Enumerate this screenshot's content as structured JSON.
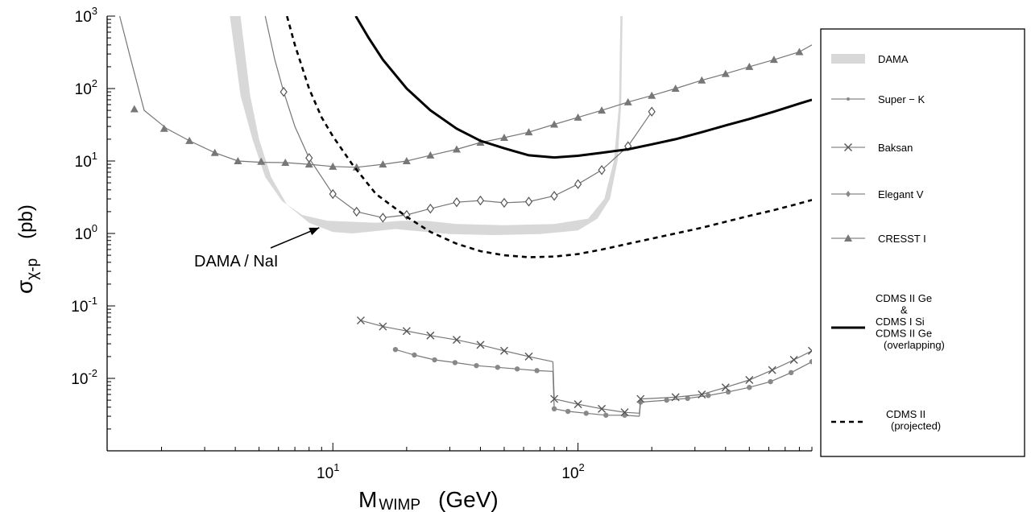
{
  "chart_data": {
    "type": "line",
    "title": "",
    "xlabel_main": "M",
    "xlabel_sub": "WIMP",
    "xlabel_unit": "(GeV)",
    "ylabel_main": "σ",
    "ylabel_sub": "χ-p",
    "ylabel_unit": "(pb)",
    "x_scale": "log",
    "y_scale": "log",
    "xlim": [
      1.2,
      900
    ],
    "ylim": [
      0.001,
      1000
    ],
    "x_ticks": [
      {
        "value": 10,
        "base": "10",
        "exp": "1"
      },
      {
        "value": 100,
        "base": "10",
        "exp": "2"
      }
    ],
    "y_ticks": [
      {
        "value": 1000,
        "base": "10",
        "exp": "3"
      },
      {
        "value": 100,
        "base": "10",
        "exp": "2"
      },
      {
        "value": 10,
        "base": "10",
        "exp": "1"
      },
      {
        "value": 1,
        "base": "10",
        "exp": "0"
      },
      {
        "value": 0.1,
        "base": "10",
        "exp": "-1"
      },
      {
        "value": 0.01,
        "base": "10",
        "exp": "-2"
      }
    ],
    "grid": false,
    "legend_position": "right",
    "series": [
      {
        "name": "DAMA",
        "style": "band",
        "color": "#d8d8d8",
        "lower": [
          [
            4.2,
            1000
          ],
          [
            4.6,
            80
          ],
          [
            5,
            20
          ],
          [
            5.6,
            6
          ],
          [
            6.5,
            2.5
          ],
          [
            8,
            1.4
          ],
          [
            10,
            1.05
          ],
          [
            12,
            1.0
          ],
          [
            15,
            1.08
          ],
          [
            18,
            1.15
          ],
          [
            22,
            1.08
          ],
          [
            30,
            0.98
          ],
          [
            45,
            0.95
          ],
          [
            70,
            0.98
          ],
          [
            100,
            1.1
          ],
          [
            120,
            1.6
          ],
          [
            135,
            3
          ],
          [
            145,
            10
          ],
          [
            150,
            60
          ],
          [
            152,
            1000
          ]
        ],
        "upper": [
          [
            3.8,
            1000
          ],
          [
            4.2,
            80
          ],
          [
            4.7,
            20
          ],
          [
            5.3,
            6
          ],
          [
            6.2,
            2.8
          ],
          [
            7.5,
            1.8
          ],
          [
            9.5,
            1.5
          ],
          [
            12,
            1.45
          ],
          [
            15,
            1.4
          ],
          [
            19,
            1.5
          ],
          [
            24,
            1.5
          ],
          [
            32,
            1.35
          ],
          [
            50,
            1.3
          ],
          [
            80,
            1.35
          ],
          [
            110,
            1.6
          ],
          [
            128,
            3
          ],
          [
            140,
            10
          ],
          [
            147,
            60
          ],
          [
            149,
            1000
          ]
        ]
      },
      {
        "name": "Super-K",
        "style": "marker-line",
        "color": "#777777",
        "marker": "dot",
        "segments": [
          [
            [
              18,
              0.025
            ],
            [
              21.5,
              0.021
            ],
            [
              26,
              0.018
            ],
            [
              31.5,
              0.0165
            ],
            [
              38.5,
              0.015
            ],
            [
              47,
              0.0142
            ],
            [
              56.5,
              0.0135
            ],
            [
              68,
              0.0128
            ],
            [
              79,
              0.0125
            ]
          ],
          [
            [
              80,
              0.0038
            ],
            [
              91,
              0.0035
            ],
            [
              108,
              0.0033
            ],
            [
              130,
              0.0031
            ],
            [
              155,
              0.0031
            ],
            [
              178,
              0.003
            ]
          ],
          [
            [
              180,
              0.0047
            ],
            [
              230,
              0.005
            ],
            [
              280,
              0.0053
            ],
            [
              340,
              0.0058
            ],
            [
              410,
              0.0065
            ],
            [
              500,
              0.0075
            ],
            [
              610,
              0.009
            ],
            [
              740,
              0.012
            ],
            [
              900,
              0.017
            ]
          ]
        ]
      },
      {
        "name": "Baksan",
        "style": "marker-line",
        "color": "#777777",
        "marker": "x",
        "segments": [
          [
            [
              13,
              0.063
            ],
            [
              16,
              0.052
            ],
            [
              20,
              0.045
            ],
            [
              25,
              0.039
            ],
            [
              32,
              0.034
            ],
            [
              40,
              0.029
            ],
            [
              50,
              0.024
            ],
            [
              63,
              0.02
            ],
            [
              79,
              0.017
            ]
          ],
          [
            [
              80,
              0.0052
            ],
            [
              100,
              0.0044
            ],
            [
              125,
              0.0038
            ],
            [
              155,
              0.0034
            ],
            [
              178,
              0.0033
            ]
          ],
          [
            [
              180,
              0.0052
            ],
            [
              250,
              0.0055
            ],
            [
              320,
              0.006
            ],
            [
              400,
              0.0075
            ],
            [
              500,
              0.0095
            ],
            [
              620,
              0.013
            ],
            [
              760,
              0.018
            ],
            [
              900,
              0.024
            ]
          ]
        ]
      },
      {
        "name": "Elegant V",
        "style": "marker-line",
        "color": "#666666",
        "marker": "diamond",
        "line": [
          [
            5.3,
            1000
          ],
          [
            5.8,
            250
          ],
          [
            6.3,
            90
          ],
          [
            7,
            30
          ],
          [
            8,
            11
          ],
          [
            10,
            3.5
          ],
          [
            12.5,
            2.0
          ],
          [
            16,
            1.65
          ],
          [
            20,
            1.8
          ],
          [
            25,
            2.2
          ],
          [
            32,
            2.7
          ],
          [
            40,
            2.85
          ],
          [
            50,
            2.65
          ],
          [
            63,
            2.75
          ],
          [
            80,
            3.3
          ],
          [
            100,
            4.8
          ],
          [
            125,
            7.5
          ],
          [
            160,
            16
          ],
          [
            200,
            48
          ]
        ],
        "markers": [
          [
            6.3,
            90
          ],
          [
            8,
            11
          ],
          [
            10,
            3.5
          ],
          [
            12.5,
            2.0
          ],
          [
            16,
            1.65
          ],
          [
            20,
            1.8
          ],
          [
            25,
            2.2
          ],
          [
            32,
            2.7
          ],
          [
            40,
            2.85
          ],
          [
            50,
            2.65
          ],
          [
            63,
            2.75
          ],
          [
            80,
            3.3
          ],
          [
            100,
            4.8
          ],
          [
            125,
            7.5
          ],
          [
            160,
            16
          ],
          [
            200,
            48
          ]
        ]
      },
      {
        "name": "CRESST I",
        "style": "marker-line",
        "color": "#777777",
        "marker": "triangle",
        "line": [
          [
            1.35,
            1000
          ],
          [
            1.5,
            250
          ],
          [
            1.7,
            50
          ],
          [
            2.1,
            28
          ],
          [
            2.6,
            19
          ],
          [
            3.3,
            13
          ],
          [
            4.1,
            10
          ],
          [
            5.1,
            9.6
          ],
          [
            6.4,
            9.5
          ],
          [
            8,
            9
          ],
          [
            10,
            8.4
          ],
          [
            12.5,
            8.2
          ],
          [
            16,
            9
          ],
          [
            20,
            10
          ],
          [
            25,
            12
          ],
          [
            32,
            14.5
          ],
          [
            40,
            18
          ],
          [
            50,
            21
          ],
          [
            63,
            25
          ],
          [
            80,
            32
          ],
          [
            100,
            40
          ],
          [
            125,
            50
          ],
          [
            160,
            65
          ],
          [
            200,
            80
          ],
          [
            250,
            100
          ],
          [
            320,
            130
          ],
          [
            400,
            160
          ],
          [
            500,
            200
          ],
          [
            630,
            250
          ],
          [
            800,
            320
          ],
          [
            900,
            400
          ]
        ],
        "markers": [
          [
            1.55,
            52
          ],
          [
            2.05,
            28
          ],
          [
            2.6,
            19
          ],
          [
            3.3,
            13
          ],
          [
            4.1,
            10
          ],
          [
            5.1,
            9.8
          ],
          [
            6.4,
            9.5
          ],
          [
            8,
            9
          ],
          [
            10,
            8.4
          ],
          [
            12.5,
            8.2
          ],
          [
            16,
            9
          ],
          [
            20,
            10
          ],
          [
            25,
            12
          ],
          [
            32,
            14.5
          ],
          [
            40,
            18
          ],
          [
            50,
            21
          ],
          [
            63,
            25
          ],
          [
            80,
            32
          ],
          [
            100,
            40
          ],
          [
            125,
            50
          ],
          [
            160,
            65
          ],
          [
            200,
            80
          ],
          [
            250,
            100
          ],
          [
            320,
            130
          ],
          [
            400,
            160
          ],
          [
            500,
            200
          ],
          [
            630,
            250
          ],
          [
            800,
            320
          ]
        ]
      },
      {
        "name": "CDMS II Ge & CDMS I Si CDMS II Ge (overlapping)",
        "style": "solid",
        "color": "#000000",
        "line": [
          [
            12.4,
            1000
          ],
          [
            14,
            500
          ],
          [
            16,
            250
          ],
          [
            20,
            100
          ],
          [
            25,
            50
          ],
          [
            32,
            28
          ],
          [
            40,
            19
          ],
          [
            50,
            15
          ],
          [
            63,
            12
          ],
          [
            80,
            11.2
          ],
          [
            100,
            11.8
          ],
          [
            125,
            13
          ],
          [
            160,
            14.5
          ],
          [
            200,
            17
          ],
          [
            250,
            20
          ],
          [
            320,
            25
          ],
          [
            400,
            31
          ],
          [
            500,
            38
          ],
          [
            630,
            48
          ],
          [
            800,
            62
          ],
          [
            900,
            70
          ]
        ]
      },
      {
        "name": "CDMS II (projected)",
        "style": "dashed",
        "color": "#000000",
        "line": [
          [
            6.5,
            1000
          ],
          [
            7,
            400
          ],
          [
            8,
            100
          ],
          [
            9,
            40
          ],
          [
            10,
            22
          ],
          [
            12,
            9
          ],
          [
            15,
            3.5
          ],
          [
            20,
            1.7
          ],
          [
            25,
            1.05
          ],
          [
            32,
            0.72
          ],
          [
            40,
            0.57
          ],
          [
            50,
            0.5
          ],
          [
            63,
            0.47
          ],
          [
            80,
            0.48
          ],
          [
            100,
            0.52
          ],
          [
            125,
            0.6
          ],
          [
            160,
            0.72
          ],
          [
            200,
            0.85
          ],
          [
            250,
            1.0
          ],
          [
            320,
            1.2
          ],
          [
            400,
            1.45
          ],
          [
            500,
            1.75
          ],
          [
            630,
            2.1
          ],
          [
            800,
            2.6
          ],
          [
            900,
            2.9
          ]
        ]
      }
    ],
    "annotations": [
      {
        "text": "DAMA / NaI",
        "arrow_to": [
          8.8,
          1.4
        ]
      }
    ]
  },
  "legend": {
    "items": [
      {
        "key": "dama",
        "label": "DAMA"
      },
      {
        "key": "superk",
        "label": "Super − K"
      },
      {
        "key": "baksan",
        "label": "Baksan"
      },
      {
        "key": "elegant",
        "label": "Elegant   V"
      },
      {
        "key": "cresst",
        "label": "CRESST   I"
      },
      {
        "key": "cdms_solid",
        "label_lines": [
          "CDMS  II  Ge",
          "&",
          "CDMS  I  Si",
          "CDMS  II  Ge",
          "(overlapping)"
        ]
      },
      {
        "key": "cdms_dash",
        "label_lines": [
          "CDMS   II",
          "(projected)"
        ]
      }
    ]
  }
}
